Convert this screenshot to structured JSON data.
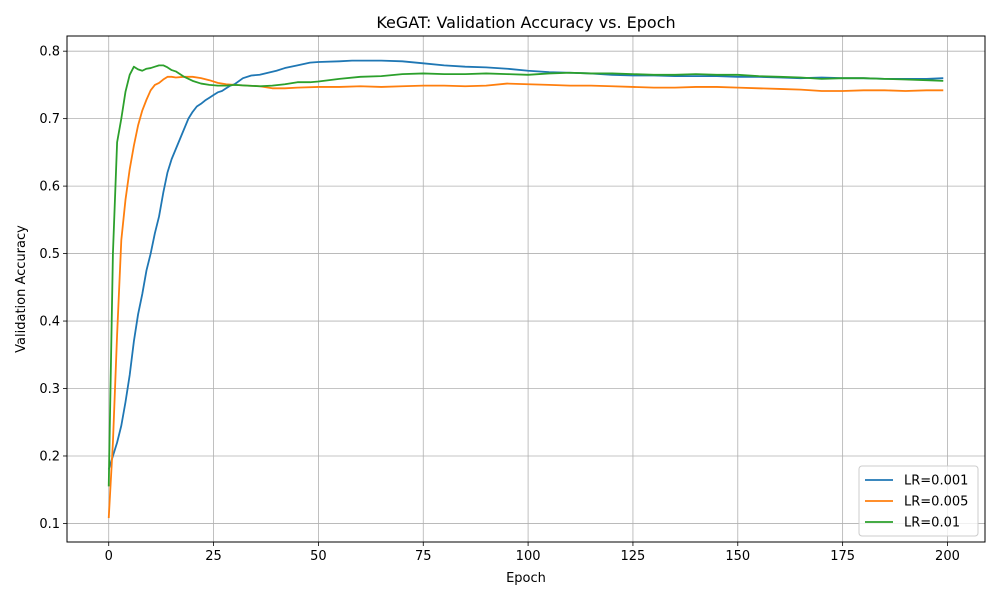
{
  "chart_data": {
    "type": "line",
    "title": "KeGAT: Validation Accuracy vs. Epoch",
    "xlabel": "Epoch",
    "ylabel": "Validation Accuracy",
    "xlim": [
      -9.95,
      208.95
    ],
    "ylim": [
      0.0725,
      0.8225
    ],
    "xticks": [
      0,
      25,
      50,
      75,
      100,
      125,
      150,
      175,
      200
    ],
    "yticks": [
      0.1,
      0.2,
      0.3,
      0.4,
      0.5,
      0.6,
      0.7,
      0.8
    ],
    "grid": true,
    "legend_position": "lower-right",
    "series": [
      {
        "name": "LR=0.001",
        "color": "#1f77b4",
        "points": [
          [
            0,
            0.18
          ],
          [
            1,
            0.2
          ],
          [
            2,
            0.22
          ],
          [
            3,
            0.245
          ],
          [
            4,
            0.28
          ],
          [
            5,
            0.32
          ],
          [
            6,
            0.37
          ],
          [
            7,
            0.41
          ],
          [
            8,
            0.44
          ],
          [
            9,
            0.475
          ],
          [
            10,
            0.5
          ],
          [
            11,
            0.53
          ],
          [
            12,
            0.555
          ],
          [
            13,
            0.59
          ],
          [
            14,
            0.62
          ],
          [
            15,
            0.64
          ],
          [
            16,
            0.655
          ],
          [
            17,
            0.67
          ],
          [
            18,
            0.685
          ],
          [
            19,
            0.7
          ],
          [
            20,
            0.71
          ],
          [
            21,
            0.718
          ],
          [
            22,
            0.722
          ],
          [
            23,
            0.727
          ],
          [
            24,
            0.731
          ],
          [
            25,
            0.735
          ],
          [
            26,
            0.739
          ],
          [
            27,
            0.741
          ],
          [
            28,
            0.745
          ],
          [
            29,
            0.749
          ],
          [
            30,
            0.751
          ],
          [
            32,
            0.76
          ],
          [
            34,
            0.764
          ],
          [
            36,
            0.765
          ],
          [
            38,
            0.768
          ],
          [
            40,
            0.771
          ],
          [
            42,
            0.775
          ],
          [
            45,
            0.779
          ],
          [
            48,
            0.783
          ],
          [
            50,
            0.784
          ],
          [
            55,
            0.785
          ],
          [
            58,
            0.786
          ],
          [
            60,
            0.786
          ],
          [
            65,
            0.786
          ],
          [
            70,
            0.785
          ],
          [
            75,
            0.782
          ],
          [
            80,
            0.779
          ],
          [
            85,
            0.777
          ],
          [
            90,
            0.776
          ],
          [
            95,
            0.774
          ],
          [
            100,
            0.771
          ],
          [
            105,
            0.769
          ],
          [
            110,
            0.768
          ],
          [
            115,
            0.767
          ],
          [
            120,
            0.765
          ],
          [
            125,
            0.764
          ],
          [
            130,
            0.764
          ],
          [
            135,
            0.763
          ],
          [
            140,
            0.763
          ],
          [
            145,
            0.763
          ],
          [
            150,
            0.762
          ],
          [
            155,
            0.762
          ],
          [
            160,
            0.761
          ],
          [
            165,
            0.76
          ],
          [
            170,
            0.761
          ],
          [
            175,
            0.76
          ],
          [
            180,
            0.76
          ],
          [
            185,
            0.759
          ],
          [
            190,
            0.759
          ],
          [
            195,
            0.759
          ],
          [
            199,
            0.76
          ]
        ]
      },
      {
        "name": "LR=0.005",
        "color": "#ff7f0e",
        "points": [
          [
            0,
            0.108
          ],
          [
            1,
            0.22
          ],
          [
            2,
            0.38
          ],
          [
            3,
            0.52
          ],
          [
            4,
            0.58
          ],
          [
            5,
            0.625
          ],
          [
            6,
            0.66
          ],
          [
            7,
            0.69
          ],
          [
            8,
            0.712
          ],
          [
            9,
            0.728
          ],
          [
            10,
            0.742
          ],
          [
            11,
            0.75
          ],
          [
            12,
            0.753
          ],
          [
            13,
            0.758
          ],
          [
            14,
            0.762
          ],
          [
            15,
            0.762
          ],
          [
            16,
            0.761
          ],
          [
            18,
            0.762
          ],
          [
            20,
            0.762
          ],
          [
            22,
            0.76
          ],
          [
            24,
            0.757
          ],
          [
            26,
            0.753
          ],
          [
            28,
            0.751
          ],
          [
            30,
            0.75
          ],
          [
            33,
            0.749
          ],
          [
            36,
            0.748
          ],
          [
            39,
            0.745
          ],
          [
            42,
            0.745
          ],
          [
            45,
            0.746
          ],
          [
            50,
            0.747
          ],
          [
            55,
            0.747
          ],
          [
            60,
            0.748
          ],
          [
            65,
            0.747
          ],
          [
            70,
            0.748
          ],
          [
            75,
            0.749
          ],
          [
            80,
            0.749
          ],
          [
            85,
            0.748
          ],
          [
            90,
            0.749
          ],
          [
            95,
            0.752
          ],
          [
            100,
            0.751
          ],
          [
            105,
            0.75
          ],
          [
            110,
            0.749
          ],
          [
            115,
            0.749
          ],
          [
            120,
            0.748
          ],
          [
            125,
            0.747
          ],
          [
            130,
            0.746
          ],
          [
            135,
            0.746
          ],
          [
            140,
            0.747
          ],
          [
            145,
            0.747
          ],
          [
            150,
            0.746
          ],
          [
            155,
            0.745
          ],
          [
            160,
            0.744
          ],
          [
            165,
            0.743
          ],
          [
            170,
            0.741
          ],
          [
            175,
            0.741
          ],
          [
            180,
            0.742
          ],
          [
            185,
            0.742
          ],
          [
            190,
            0.741
          ],
          [
            195,
            0.742
          ],
          [
            199,
            0.742
          ]
        ]
      },
      {
        "name": "LR=0.01",
        "color": "#2ca02c",
        "points": [
          [
            0,
            0.155
          ],
          [
            1,
            0.5
          ],
          [
            2,
            0.665
          ],
          [
            3,
            0.7
          ],
          [
            4,
            0.74
          ],
          [
            5,
            0.765
          ],
          [
            6,
            0.777
          ],
          [
            7,
            0.773
          ],
          [
            8,
            0.771
          ],
          [
            9,
            0.774
          ],
          [
            10,
            0.775
          ],
          [
            11,
            0.777
          ],
          [
            12,
            0.779
          ],
          [
            13,
            0.779
          ],
          [
            14,
            0.776
          ],
          [
            15,
            0.772
          ],
          [
            16,
            0.77
          ],
          [
            17,
            0.766
          ],
          [
            18,
            0.762
          ],
          [
            19,
            0.759
          ],
          [
            20,
            0.756
          ],
          [
            22,
            0.752
          ],
          [
            24,
            0.75
          ],
          [
            26,
            0.749
          ],
          [
            28,
            0.749
          ],
          [
            30,
            0.75
          ],
          [
            33,
            0.749
          ],
          [
            36,
            0.748
          ],
          [
            39,
            0.749
          ],
          [
            42,
            0.751
          ],
          [
            45,
            0.754
          ],
          [
            48,
            0.754
          ],
          [
            50,
            0.755
          ],
          [
            55,
            0.759
          ],
          [
            60,
            0.762
          ],
          [
            65,
            0.763
          ],
          [
            70,
            0.766
          ],
          [
            75,
            0.767
          ],
          [
            80,
            0.766
          ],
          [
            85,
            0.766
          ],
          [
            90,
            0.767
          ],
          [
            95,
            0.766
          ],
          [
            100,
            0.765
          ],
          [
            105,
            0.767
          ],
          [
            110,
            0.768
          ],
          [
            115,
            0.767
          ],
          [
            120,
            0.767
          ],
          [
            125,
            0.766
          ],
          [
            130,
            0.765
          ],
          [
            135,
            0.765
          ],
          [
            140,
            0.766
          ],
          [
            145,
            0.765
          ],
          [
            150,
            0.765
          ],
          [
            155,
            0.763
          ],
          [
            160,
            0.762
          ],
          [
            165,
            0.761
          ],
          [
            170,
            0.759
          ],
          [
            175,
            0.76
          ],
          [
            180,
            0.76
          ],
          [
            185,
            0.759
          ],
          [
            190,
            0.758
          ],
          [
            195,
            0.757
          ],
          [
            199,
            0.756
          ]
        ]
      }
    ]
  }
}
